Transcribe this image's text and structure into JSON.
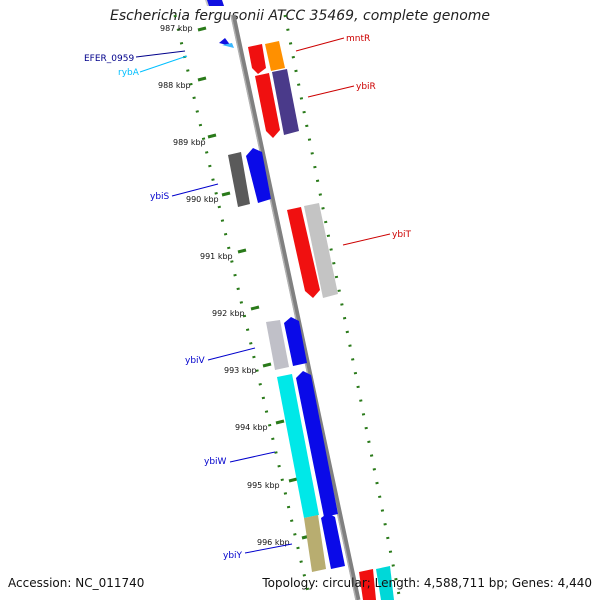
{
  "title": "Escherichia fergusonii ATCC 35469, complete genome",
  "footer": {
    "accession": "Accession: NC_011740",
    "topology": "Topology: circular; Length: 4,588,711 bp; Genes: 4,440"
  },
  "ticks": [
    {
      "label": "987 kbp"
    },
    {
      "label": "988 kbp"
    },
    {
      "label": "989 kbp"
    },
    {
      "label": "990 kbp"
    },
    {
      "label": "991 kbp"
    },
    {
      "label": "992 kbp"
    },
    {
      "label": "993 kbp"
    },
    {
      "label": "994 kbp"
    },
    {
      "label": "995 kbp"
    },
    {
      "label": "996 kbp"
    }
  ],
  "gene_labels": [
    {
      "name": "EFER_0959",
      "color": "#00008b"
    },
    {
      "name": "rybA",
      "color": "#00bfff"
    },
    {
      "name": "mntR",
      "color": "#cc0000"
    },
    {
      "name": "ybiR",
      "color": "#cc0000"
    },
    {
      "name": "ybiS",
      "color": "#0000cc"
    },
    {
      "name": "ybiT",
      "color": "#cc0000"
    },
    {
      "name": "ybiV",
      "color": "#0000cc"
    },
    {
      "name": "ybiW",
      "color": "#0000cc"
    },
    {
      "name": "ybiY",
      "color": "#0000cc"
    }
  ],
  "colors": {
    "tick": "#2a7a1a",
    "backbone": "#808080"
  }
}
